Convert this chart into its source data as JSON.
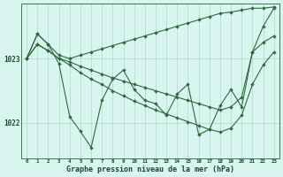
{
  "background_color": "#d8f5f0",
  "grid_color": "#b0d8cc",
  "line_color": "#2d6b3c",
  "text_color": "#1a4a2a",
  "xlabel": "Graphe pression niveau de la mer (hPa)",
  "x_ticks": [
    0,
    1,
    2,
    3,
    4,
    5,
    6,
    7,
    8,
    9,
    10,
    11,
    12,
    13,
    14,
    15,
    16,
    17,
    18,
    19,
    20,
    21,
    22,
    23
  ],
  "ylim_min": 1021.45,
  "ylim_max": 1023.85,
  "yticks": [
    1022,
    1023
  ],
  "series": {
    "upper_fan": [
      1023.0,
      1023.38,
      1023.22,
      1023.05,
      1023.0,
      1023.05,
      1023.1,
      1023.15,
      1023.2,
      1023.25,
      1023.3,
      1023.35,
      1023.4,
      1023.45,
      1023.5,
      1023.55,
      1023.6,
      1023.65,
      1023.7,
      1023.72,
      1023.75,
      1023.78,
      1023.78,
      1023.8
    ],
    "mid_fan1": [
      1023.0,
      1023.22,
      1023.12,
      1023.0,
      1022.95,
      1022.88,
      1022.82,
      1022.76,
      1022.7,
      1022.65,
      1022.6,
      1022.55,
      1022.5,
      1022.45,
      1022.4,
      1022.35,
      1022.3,
      1022.25,
      1022.2,
      1022.25,
      1022.4,
      1023.1,
      1023.25,
      1023.35
    ],
    "mid_fan2": [
      1023.0,
      1023.22,
      1023.12,
      1023.0,
      1022.9,
      1022.78,
      1022.68,
      1022.6,
      1022.5,
      1022.42,
      1022.34,
      1022.27,
      1022.2,
      1022.14,
      1022.08,
      1022.02,
      1021.96,
      1021.9,
      1021.86,
      1021.92,
      1022.12,
      1022.6,
      1022.9,
      1023.1
    ],
    "zigzag": [
      1023.0,
      1023.38,
      1023.22,
      1022.92,
      1022.1,
      1021.87,
      1021.62,
      1022.35,
      1022.68,
      1022.82,
      1022.52,
      1022.35,
      1022.3,
      1022.12,
      1022.45,
      1022.6,
      1021.82,
      1021.9,
      1022.27,
      1022.52,
      1022.25,
      1023.1,
      1023.5,
      1023.78
    ]
  }
}
